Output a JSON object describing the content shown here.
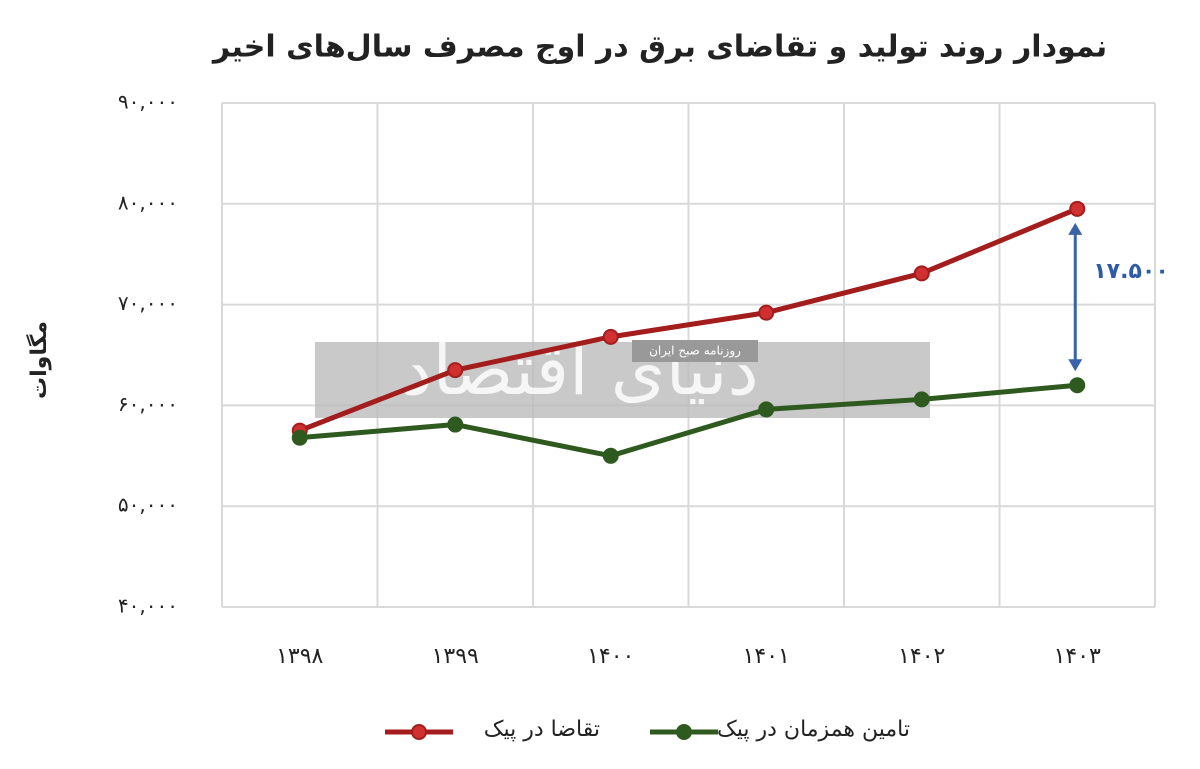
{
  "chart_data": {
    "type": "line",
    "title": "نمودار روند تولید و تقاضای برق در اوج مصرف سال‌های اخیر",
    "y_label": "مگاوات",
    "categories": [
      "۱۳۹۸",
      "۱۳۹۹",
      "۱۴۰۰",
      "۱۴۰۱",
      "۱۴۰۲",
      "۱۴۰۳"
    ],
    "series": [
      {
        "name": "تقاضا در پیک",
        "color": "#a31d1d",
        "values": [
          57500,
          63500,
          66800,
          69200,
          73100,
          79500
        ]
      },
      {
        "name": "تامین همزمان در پیک",
        "color": "#2f5a1f",
        "values": [
          56800,
          58100,
          55000,
          59600,
          60600,
          62000
        ]
      }
    ],
    "ylim": [
      40000,
      90000
    ],
    "yticks": [
      {
        "value": 40000,
        "label": "۴۰,۰۰۰"
      },
      {
        "value": 50000,
        "label": "۵۰,۰۰۰"
      },
      {
        "value": 60000,
        "label": "۶۰,۰۰۰"
      },
      {
        "value": 70000,
        "label": "۷۰,۰۰۰"
      },
      {
        "value": 80000,
        "label": "۸۰,۰۰۰"
      },
      {
        "value": 90000,
        "label": "۹۰,۰۰۰"
      }
    ],
    "grid": true,
    "annotation": "۱۷.۵۰۰",
    "watermark": {
      "brand": "دنیای اقتصاد",
      "tagline": "روزنامه صبح ایران"
    }
  }
}
